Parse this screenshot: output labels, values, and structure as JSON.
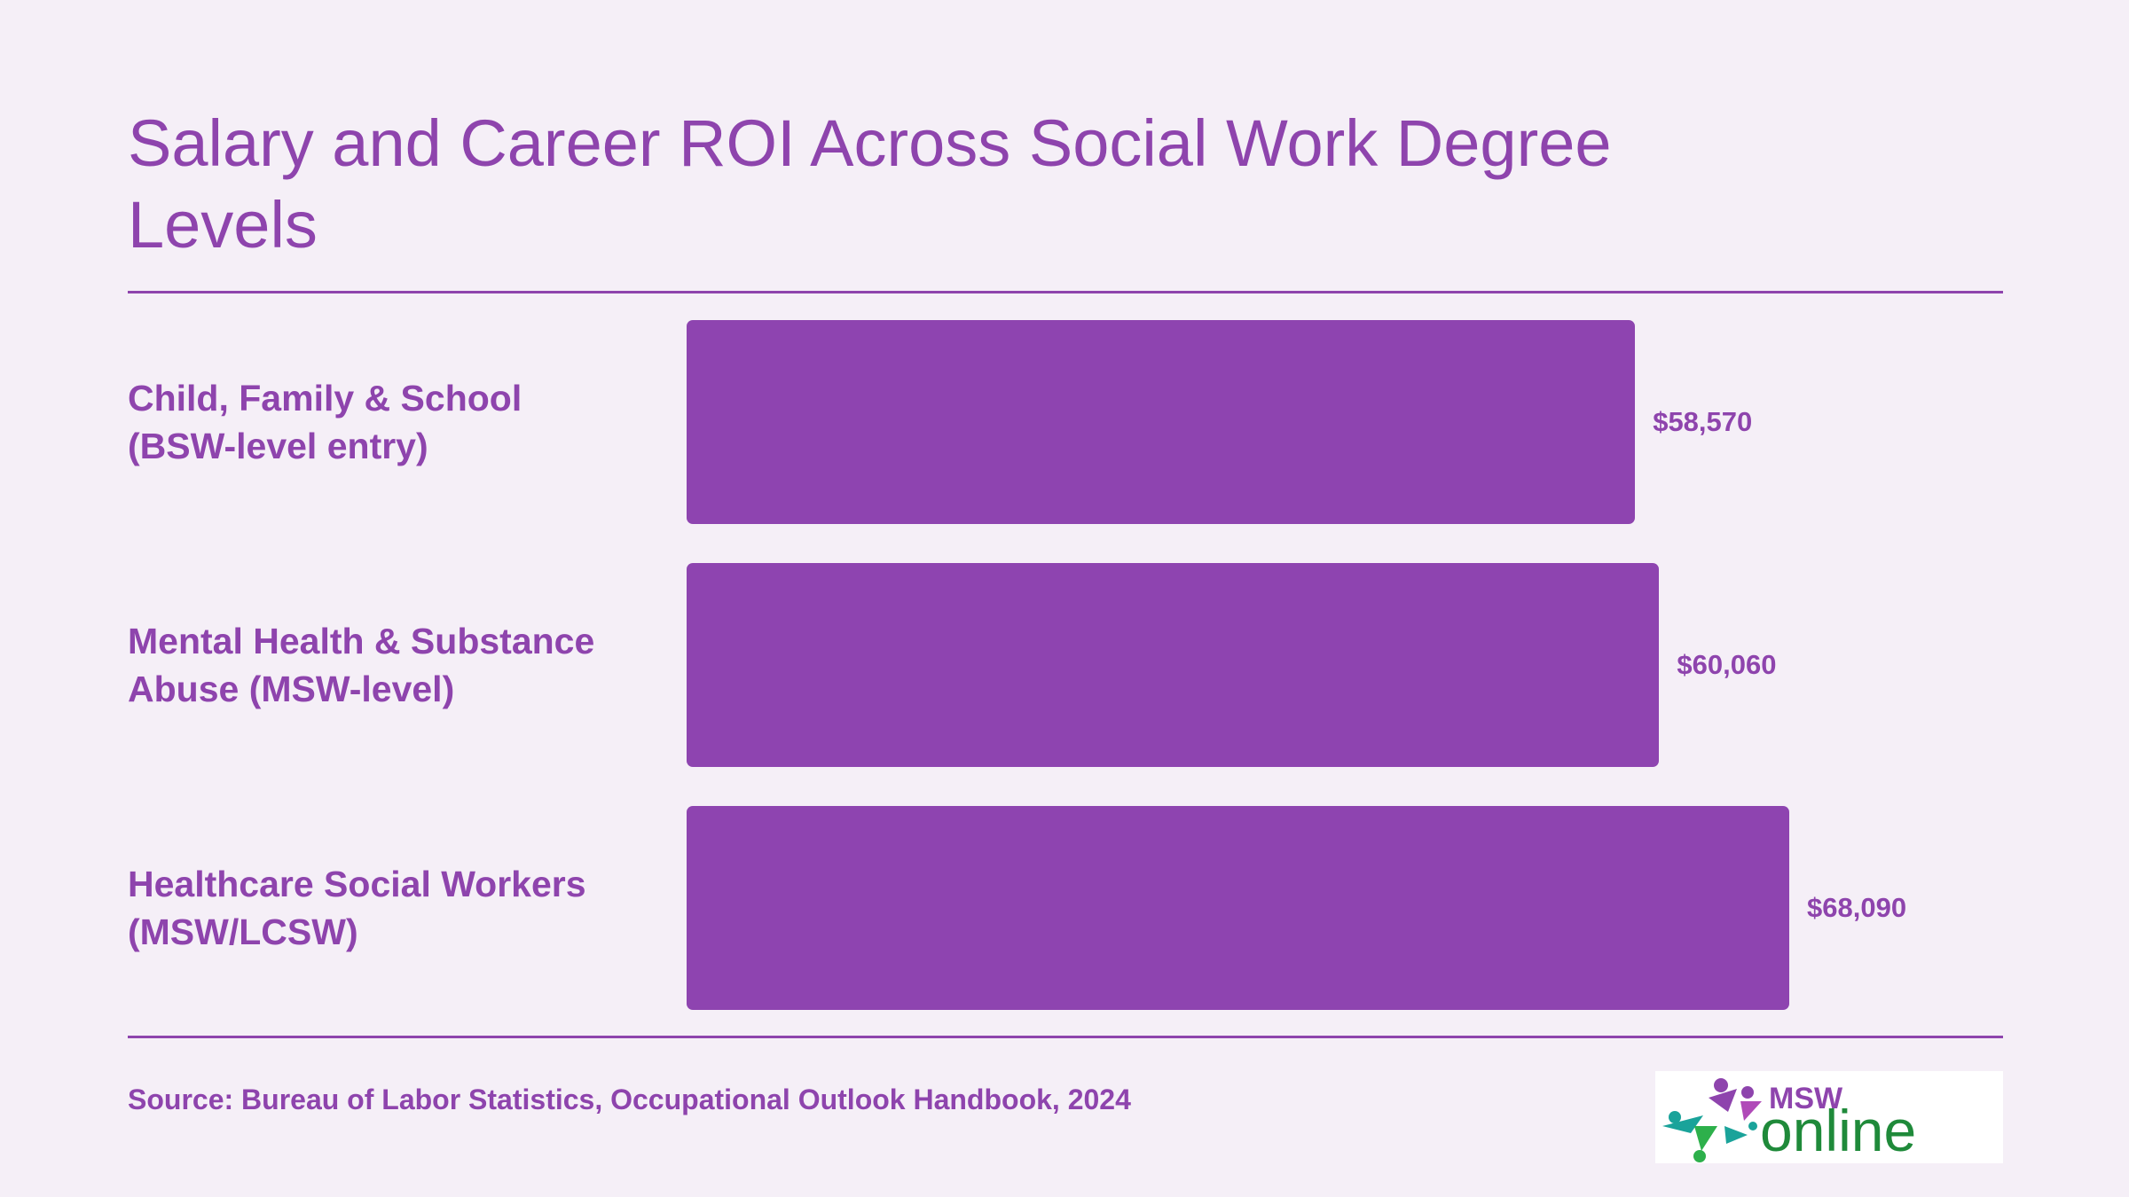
{
  "chart_data": {
    "type": "bar",
    "orientation": "horizontal",
    "title": "Salary and Career ROI Across Social Work Degree Levels",
    "categories": [
      "Child, Family & School (BSW-level entry)",
      "Mental Health & Substance Abuse (MSW-level)",
      "Healthcare Social Workers (MSW/LCSW)"
    ],
    "values": [
      58570,
      60060,
      68090
    ],
    "value_labels": [
      "$58,570",
      "$60,060",
      "$68,090"
    ],
    "color": "#8e44b0",
    "source": "Source: Bureau of Labor Statistics, Occupational Outlook Handbook, 2024"
  },
  "logo": {
    "top": "MSW",
    "bottom": "online"
  }
}
